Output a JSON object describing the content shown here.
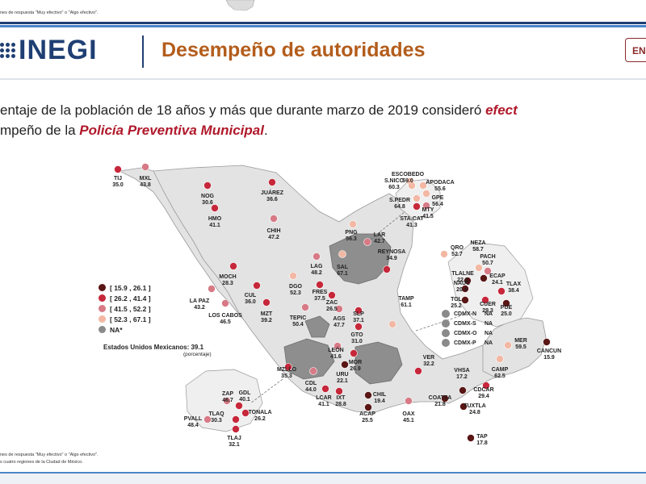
{
  "header": {
    "top_note": "nes de respuesta \"Muy efectivo\" o \"Algo efectivo\".",
    "logo_text": "INEGI",
    "title": "Desempeño de autoridades",
    "lang_button": "EN"
  },
  "subtitle": {
    "line1_start": "entaje de la población de 18 años y más que durante marzo de 2019 consideró ",
    "line1_em": "efect",
    "line2_start": "mpeño de la ",
    "line2_em": "Policía Preventiva Municipal",
    "line2_end": "."
  },
  "legend": [
    {
      "range": "[ 15.9 , 26.1 ]",
      "color": "#5a1515"
    },
    {
      "range": "[ 26.2 , 41.4 ]",
      "color": "#c7273a"
    },
    {
      "range": "[ 41.5 , 52.2 ]",
      "color": "#d77a86"
    },
    {
      "range": "[ 52.3 , 67.1 ]",
      "color": "#f2b8a4"
    },
    {
      "range": "NA*",
      "color": "#8a8a8a"
    }
  ],
  "national": {
    "label": "Estados Unidos Mexicanos:",
    "value": "39.1",
    "unit": "(porcentaje)"
  },
  "cdmx_group": [
    {
      "name": "CDMX-N",
      "value": "NA"
    },
    {
      "name": "CDMX-S",
      "value": "NA"
    },
    {
      "name": "CDMX-O",
      "value": "NA"
    },
    {
      "name": "CDMX-P",
      "value": "NA"
    }
  ],
  "cities": [
    {
      "name": "TIJ",
      "value": "35.0",
      "color": "#c7273a"
    },
    {
      "name": "MXL",
      "value": "43.8",
      "color": "#d77a86"
    },
    {
      "name": "NOG",
      "value": "30.6",
      "color": "#c7273a"
    },
    {
      "name": "JUÁREZ",
      "value": "36.6",
      "color": "#c7273a"
    },
    {
      "name": "HMO",
      "value": "41.1",
      "color": "#c7273a"
    },
    {
      "name": "CHIH",
      "value": "47.2",
      "color": "#d77a86"
    },
    {
      "name": "MOCH",
      "value": "28.3",
      "color": "#c7273a"
    },
    {
      "name": "CUL",
      "value": "36.0",
      "color": "#c7273a"
    },
    {
      "name": "LA PAZ",
      "value": "43.2",
      "color": "#d77a86"
    },
    {
      "name": "LOS CABOS",
      "value": "46.5",
      "color": "#d77a86"
    },
    {
      "name": "MZT",
      "value": "39.2",
      "color": "#c7273a"
    },
    {
      "name": "DGO",
      "value": "52.3",
      "color": "#f2b8a4"
    },
    {
      "name": "LAG",
      "value": "48.2",
      "color": "#d77a86"
    },
    {
      "name": "SAL",
      "value": "67.1",
      "color": "#f2b8a4"
    },
    {
      "name": "FRES",
      "value": "37.5",
      "color": "#c7273a"
    },
    {
      "name": "ZAC",
      "value": "26.5",
      "color": "#c7273a"
    },
    {
      "name": "AGS",
      "value": "47.7",
      "color": "#d77a86"
    },
    {
      "name": "TEPIC",
      "value": "50.4",
      "color": "#d77a86"
    },
    {
      "name": "SLP",
      "value": "37.1",
      "color": "#c7273a"
    },
    {
      "name": "GTO",
      "value": "31.0",
      "color": "#c7273a"
    },
    {
      "name": "LEÓN",
      "value": "41.6",
      "color": "#d77a86"
    },
    {
      "name": "MOR",
      "value": "26.9",
      "color": "#c7273a"
    },
    {
      "name": "MZLLO",
      "value": "35.3",
      "color": "#c7273a"
    },
    {
      "name": "CDL",
      "value": "44.0",
      "color": "#d77a86"
    },
    {
      "name": "URU",
      "value": "22.1",
      "color": "#5a1515"
    },
    {
      "name": "LCAR",
      "value": "41.1",
      "color": "#c7273a"
    },
    {
      "name": "IXT",
      "value": "28.8",
      "color": "#c7273a"
    },
    {
      "name": "ZAP",
      "value": "46.7",
      "color": "#d77a86"
    },
    {
      "name": "GDL",
      "value": "40.1",
      "color": "#c7273a"
    },
    {
      "name": "TONALA",
      "value": "26.2",
      "color": "#c7273a"
    },
    {
      "name": "PVALL",
      "value": "48.4",
      "color": "#d77a86"
    },
    {
      "name": "TLAQ",
      "value": "30.3",
      "color": "#c7273a"
    },
    {
      "name": "TLAJ",
      "value": "32.1",
      "color": "#c7273a"
    },
    {
      "name": "CHIL",
      "value": "19.4",
      "color": "#5a1515"
    },
    {
      "name": "ACAP",
      "value": "25.5",
      "color": "#5a1515"
    },
    {
      "name": "OAX",
      "value": "45.1",
      "color": "#d77a86"
    },
    {
      "name": "PNG",
      "value": "56.3",
      "color": "#f2b8a4"
    },
    {
      "name": "LAR",
      "value": "42.7",
      "color": "#d77a86"
    },
    {
      "name": "REYNOSA",
      "value": "34.9",
      "color": "#c7273a"
    },
    {
      "name": "ESCOBEDO",
      "value": "59.0",
      "color": "#f2b8a4"
    },
    {
      "name": "S.NICO",
      "value": "60.3",
      "color": "#f2b8a4"
    },
    {
      "name": "APODACA",
      "value": "55.6",
      "color": "#f2b8a4"
    },
    {
      "name": "S.PEDR",
      "value": "64.8",
      "color": "#f2b8a4"
    },
    {
      "name": "GPE",
      "value": "56.4",
      "color": "#f2b8a4"
    },
    {
      "name": "STA.CAT",
      "value": "41.3",
      "color": "#c7273a"
    },
    {
      "name": "MTY",
      "value": "41.5",
      "color": "#d77a86"
    },
    {
      "name": "TAMP",
      "value": "61.1",
      "color": "#f2b8a4"
    },
    {
      "name": "VER",
      "value": "32.2",
      "color": "#c7273a"
    },
    {
      "name": "VHSA",
      "value": "17.2",
      "color": "#5a1515"
    },
    {
      "name": "COATZA",
      "value": "21.8",
      "color": "#5a1515"
    },
    {
      "name": "CDCAR",
      "value": "29.4",
      "color": "#c7273a"
    },
    {
      "name": "CAMP",
      "value": "62.5",
      "color": "#f2b8a4"
    },
    {
      "name": "MER",
      "value": "59.5",
      "color": "#f2b8a4"
    },
    {
      "name": "CANCUN",
      "value": "15.9",
      "color": "#5a1515"
    },
    {
      "name": "TUXTLA",
      "value": "24.8",
      "color": "#5a1515"
    },
    {
      "name": "TAP",
      "value": "17.8",
      "color": "#5a1515"
    },
    {
      "name": "QRO",
      "value": "52.7",
      "color": "#f2b8a4"
    },
    {
      "name": "NEZA",
      "value": "58.7",
      "color": "#f2b8a4"
    },
    {
      "name": "PACH",
      "value": "50.7",
      "color": "#d77a86"
    },
    {
      "name": "TLALNE",
      "value": "22.0",
      "color": "#5a1515"
    },
    {
      "name": "ECAP",
      "value": "24.1",
      "color": "#5a1515"
    },
    {
      "name": "NAUC",
      "value": "20.4",
      "color": "#5a1515"
    },
    {
      "name": "TLAX",
      "value": "38.4",
      "color": "#c7273a"
    },
    {
      "name": "TOL",
      "value": "25.2",
      "color": "#5a1515"
    },
    {
      "name": "CUER",
      "value": "29.3",
      "color": "#c7273a"
    },
    {
      "name": "PUE",
      "value": "25.0",
      "color": "#5a1515"
    }
  ],
  "footnotes": {
    "line1": "nes de respuesta \"Muy efectivo\" o \"Algo efectivo\".",
    "line2": "s cuatro regiones de la Ciudad de México."
  }
}
